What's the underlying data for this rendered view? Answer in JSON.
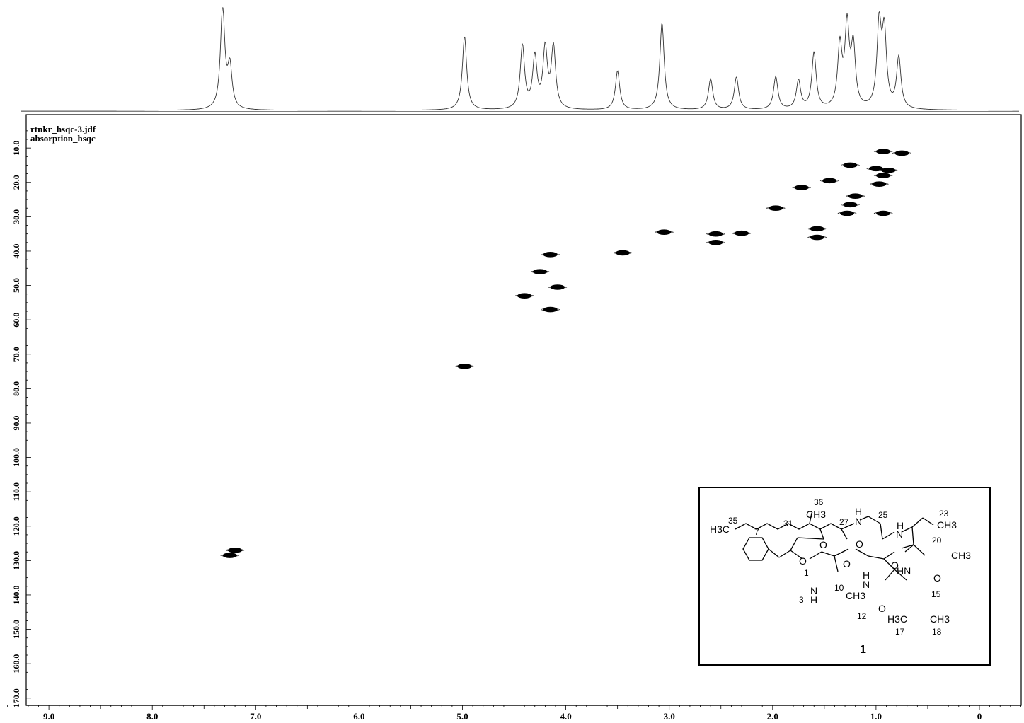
{
  "file_name": "rtnkr_hsqc-3.jdf",
  "mode": "absorption_hsqc",
  "chart_data": {
    "type": "scatter",
    "subtype": "2D HSQC NMR contour plot",
    "title": "",
    "xlabel": "",
    "ylabel": "",
    "xlim": [
      9.45,
      -0.45
    ],
    "ylim": [
      4,
      170
    ],
    "x_ticks": [
      "9.0",
      "8.0",
      "7.0",
      "6.0",
      "5.0",
      "4.0",
      "3.0",
      "2.0",
      "1.0",
      "0"
    ],
    "y_ticks": [
      "10.0",
      "20.0",
      "30.0",
      "40.0",
      "50.0",
      "60.0",
      "70.0",
      "80.0",
      "90.0",
      "100.0",
      "110.0",
      "120.0",
      "130.0",
      "140.0",
      "150.0",
      "160.0",
      "170.0"
    ],
    "grid": false,
    "legend": "none",
    "peaks": [
      {
        "x": 7.25,
        "y": 128.5
      },
      {
        "x": 7.2,
        "y": 127.0
      },
      {
        "x": 4.98,
        "y": 73.5
      },
      {
        "x": 4.4,
        "y": 53.0
      },
      {
        "x": 4.25,
        "y": 46.0
      },
      {
        "x": 4.15,
        "y": 41.0
      },
      {
        "x": 4.08,
        "y": 50.5
      },
      {
        "x": 4.15,
        "y": 57.0
      },
      {
        "x": 3.45,
        "y": 40.5
      },
      {
        "x": 3.05,
        "y": 34.5
      },
      {
        "x": 2.55,
        "y": 35.0
      },
      {
        "x": 2.55,
        "y": 37.5
      },
      {
        "x": 2.3,
        "y": 34.8
      },
      {
        "x": 1.97,
        "y": 27.5
      },
      {
        "x": 1.72,
        "y": 21.5
      },
      {
        "x": 1.57,
        "y": 33.5
      },
      {
        "x": 1.57,
        "y": 36.0
      },
      {
        "x": 1.45,
        "y": 19.5
      },
      {
        "x": 1.28,
        "y": 29.0
      },
      {
        "x": 1.25,
        "y": 26.5
      },
      {
        "x": 1.2,
        "y": 24.0
      },
      {
        "x": 1.25,
        "y": 15.0
      },
      {
        "x": 1.0,
        "y": 16.0
      },
      {
        "x": 0.97,
        "y": 20.5
      },
      {
        "x": 0.93,
        "y": 18.0
      },
      {
        "x": 0.93,
        "y": 11.0
      },
      {
        "x": 0.88,
        "y": 16.5
      },
      {
        "x": 0.75,
        "y": 11.5
      },
      {
        "x": 0.93,
        "y": 29.0
      }
    ],
    "proton_projection_peaks": [
      {
        "x": 7.32,
        "y": 1.0
      },
      {
        "x": 7.25,
        "y": 0.4
      },
      {
        "x": 4.98,
        "y": 0.72
      },
      {
        "x": 4.42,
        "y": 0.62
      },
      {
        "x": 4.3,
        "y": 0.5
      },
      {
        "x": 4.2,
        "y": 0.58
      },
      {
        "x": 4.12,
        "y": 0.6
      },
      {
        "x": 3.5,
        "y": 0.38
      },
      {
        "x": 3.07,
        "y": 0.85
      },
      {
        "x": 2.6,
        "y": 0.3
      },
      {
        "x": 2.35,
        "y": 0.32
      },
      {
        "x": 1.97,
        "y": 0.32
      },
      {
        "x": 1.75,
        "y": 0.28
      },
      {
        "x": 1.6,
        "y": 0.55
      },
      {
        "x": 1.35,
        "y": 0.6
      },
      {
        "x": 1.28,
        "y": 0.78
      },
      {
        "x": 1.22,
        "y": 0.58
      },
      {
        "x": 0.97,
        "y": 0.8
      },
      {
        "x": 0.92,
        "y": 0.72
      },
      {
        "x": 0.78,
        "y": 0.5
      }
    ]
  },
  "inset": {
    "compound_number": "1",
    "atom_numbers": [
      "35",
      "31",
      "36",
      "27",
      "25",
      "23",
      "20",
      "7",
      "1",
      "10",
      "3",
      "12",
      "15",
      "17",
      "18"
    ],
    "atom_labels": {
      "h3c_left": "H3C",
      "ch3_36": "CH3",
      "ch3_23": "CH3",
      "ch3_20": "CH3",
      "ch3_12": "CH3",
      "h3c_17": "H3C",
      "ch3_18": "CH3",
      "o_ester": "O",
      "o_1": "O",
      "o_10": "O",
      "o_27": "O",
      "o_25": "O",
      "o_20": "O",
      "o_15": "O",
      "nh_25": "H",
      "n_25": "N",
      "h_20": "H",
      "n_20": "N",
      "hn_15": "HN",
      "nh_10": "N",
      "h_10": "H",
      "h_12": "H",
      "n_12": "N",
      "h_15b": "H",
      "n_15b": "N"
    }
  }
}
